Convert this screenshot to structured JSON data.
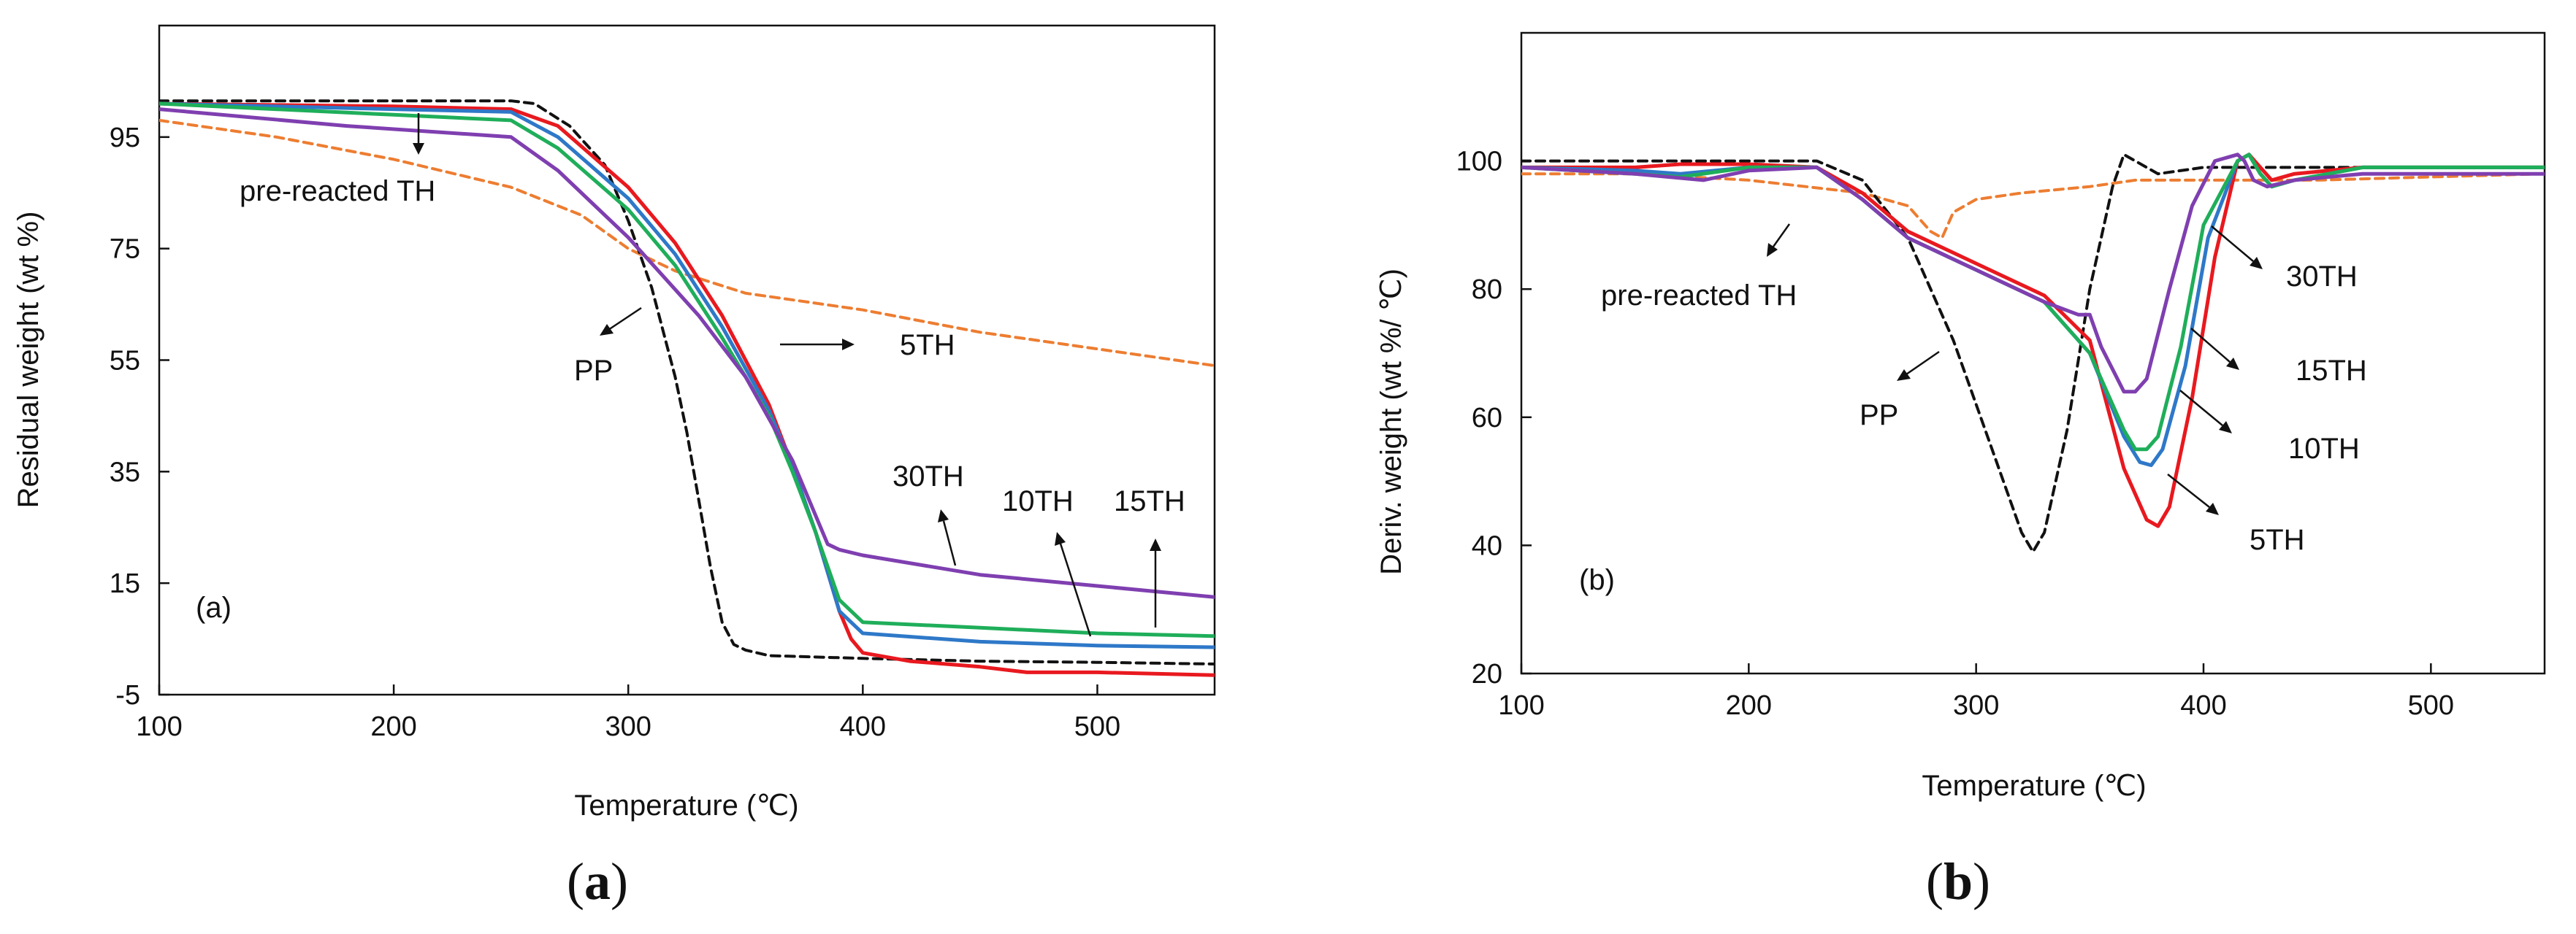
{
  "colors": {
    "pp": "#111111",
    "pre_reacted": "#ed7d31",
    "th5": "#e8191f",
    "th10": "#2e78c8",
    "th15": "#1fae5a",
    "th30": "#7f3fb0"
  },
  "chart_data": [
    {
      "id": "a",
      "type": "line",
      "panel_label": "(a)",
      "caption": {
        "open": "(",
        "letter": "a",
        "close": ")"
      },
      "xlabel": "Temperature (℃)",
      "ylabel": "Residual weight (wt %)",
      "xlim": [
        100,
        550
      ],
      "ylim": [
        -5,
        115
      ],
      "xticks": [
        100,
        200,
        300,
        400,
        500
      ],
      "yticks": [
        -5,
        15,
        35,
        55,
        75,
        95
      ],
      "series": [
        {
          "name": "pre-reacted TH",
          "color_key": "pre_reacted",
          "dash": true,
          "x": [
            100,
            150,
            200,
            250,
            280,
            300,
            320,
            350,
            400,
            450,
            500,
            550
          ],
          "y": [
            98,
            95,
            91,
            86,
            81,
            75,
            71,
            67,
            64,
            60,
            57,
            54
          ]
        },
        {
          "name": "PP",
          "color_key": "pp",
          "dash": true,
          "x": [
            100,
            250,
            260,
            275,
            290,
            300,
            310,
            320,
            325,
            330,
            335,
            340,
            345,
            350,
            360,
            400,
            450,
            500,
            550
          ],
          "y": [
            101.5,
            101.5,
            101,
            97,
            90,
            80,
            68,
            52,
            42,
            30,
            18,
            8,
            4,
            3,
            2,
            1.5,
            1,
            0.8,
            0.5
          ]
        },
        {
          "name": "5TH",
          "color_key": "th5",
          "x": [
            100,
            200,
            250,
            270,
            300,
            320,
            340,
            360,
            370,
            380,
            390,
            395,
            400,
            420,
            450,
            470,
            500,
            550
          ],
          "y": [
            101,
            100.5,
            100,
            97,
            86,
            76,
            63,
            47,
            36,
            24,
            10,
            5,
            2.5,
            1,
            0,
            -1,
            -1,
            -1.5
          ]
        },
        {
          "name": "10TH",
          "color_key": "th10",
          "x": [
            100,
            200,
            250,
            270,
            300,
            320,
            340,
            360,
            370,
            380,
            390,
            400,
            450,
            500,
            550
          ],
          "y": [
            101,
            100,
            99.5,
            95,
            84,
            74,
            61,
            46,
            36,
            24,
            10,
            6,
            4.5,
            3.8,
            3.5
          ]
        },
        {
          "name": "15TH",
          "color_key": "th15",
          "x": [
            100,
            200,
            250,
            270,
            300,
            320,
            340,
            360,
            370,
            380,
            390,
            400,
            450,
            500,
            550
          ],
          "y": [
            101,
            99,
            98,
            93,
            82,
            72,
            59,
            45,
            35,
            24,
            12,
            8,
            7,
            6,
            5.5
          ]
        },
        {
          "name": "30TH",
          "color_key": "th30",
          "x": [
            100,
            180,
            250,
            270,
            300,
            330,
            350,
            370,
            385,
            390,
            400,
            450,
            500,
            550
          ],
          "y": [
            100,
            97,
            95,
            89,
            77,
            63,
            52,
            37,
            22,
            21,
            20,
            16.5,
            14.5,
            12.5
          ]
        }
      ],
      "annotations": [
        {
          "text": "pre-reacted TH"
        },
        {
          "text": "PP"
        },
        {
          "text": "5TH"
        },
        {
          "text": "30TH"
        },
        {
          "text": "10TH"
        },
        {
          "text": "15TH"
        }
      ]
    },
    {
      "id": "b",
      "type": "line",
      "panel_label": "(b)",
      "caption": {
        "open": "(",
        "letter": "b",
        "close": ")"
      },
      "xlabel": "Temperature (℃)",
      "ylabel": "Deriv. weight (wt %/ ℃)",
      "xlim": [
        100,
        550
      ],
      "ylim": [
        20,
        120
      ],
      "xticks": [
        100,
        200,
        300,
        400,
        500
      ],
      "yticks": [
        20,
        40,
        60,
        80,
        100
      ],
      "series": [
        {
          "name": "pre-reacted TH",
          "color_key": "pre_reacted",
          "dash": true,
          "x": [
            100,
            150,
            200,
            250,
            270,
            280,
            285,
            290,
            300,
            320,
            350,
            370,
            400,
            450,
            500,
            550
          ],
          "y": [
            98,
            98,
            97,
            95,
            93,
            89,
            88,
            92,
            94,
            95,
            96,
            97,
            97,
            97,
            97.5,
            98
          ]
        },
        {
          "name": "PP",
          "color_key": "pp",
          "dash": true,
          "x": [
            100,
            200,
            230,
            250,
            270,
            290,
            300,
            310,
            320,
            325,
            330,
            340,
            350,
            360,
            365,
            370,
            380,
            400,
            450,
            500,
            550
          ],
          "y": [
            100,
            100,
            100,
            97,
            88,
            72,
            62,
            52,
            42,
            39,
            42,
            58,
            80,
            96,
            101,
            100,
            98,
            99,
            99,
            99,
            99
          ]
        },
        {
          "name": "5TH",
          "color_key": "th5",
          "x": [
            100,
            150,
            170,
            200,
            230,
            250,
            270,
            300,
            330,
            350,
            365,
            375,
            380,
            385,
            395,
            405,
            415,
            420,
            425,
            430,
            440,
            470,
            500,
            550
          ],
          "y": [
            99,
            99,
            99.5,
            99.5,
            99,
            95,
            89,
            84,
            79,
            72,
            52,
            44,
            43,
            46,
            63,
            85,
            100,
            101,
            99,
            97,
            98,
            99,
            99,
            99
          ]
        },
        {
          "name": "10TH",
          "color_key": "th10",
          "x": [
            100,
            150,
            170,
            200,
            230,
            250,
            270,
            300,
            330,
            350,
            365,
            372,
            377,
            382,
            392,
            402,
            415,
            420,
            425,
            430,
            440,
            470,
            500,
            550
          ],
          "y": [
            99,
            98.5,
            98,
            99,
            99,
            94,
            88,
            83,
            78,
            70,
            57,
            53,
            52.5,
            55,
            68,
            88,
            100,
            101,
            98,
            96,
            97,
            99,
            99,
            99
          ]
        },
        {
          "name": "15TH",
          "color_key": "th15",
          "x": [
            100,
            150,
            170,
            200,
            230,
            250,
            270,
            300,
            330,
            350,
            365,
            370,
            375,
            380,
            390,
            400,
            415,
            420,
            425,
            430,
            440,
            470,
            500,
            550
          ],
          "y": [
            99,
            98,
            97.5,
            99,
            99,
            94,
            88,
            83,
            78,
            70,
            58,
            55,
            55,
            57,
            71,
            90,
            100,
            101,
            98,
            96,
            97,
            99,
            99,
            99
          ]
        },
        {
          "name": "30TH",
          "color_key": "th30",
          "x": [
            100,
            150,
            180,
            200,
            230,
            250,
            270,
            300,
            330,
            345,
            350,
            355,
            365,
            370,
            375,
            385,
            395,
            405,
            415,
            418,
            422,
            428,
            440,
            470,
            500,
            550
          ],
          "y": [
            99,
            98,
            97,
            98.5,
            99,
            94,
            88,
            83,
            78,
            76,
            76,
            71,
            64,
            64,
            66,
            80,
            93,
            100,
            101,
            100,
            97,
            96,
            97,
            98,
            98,
            98
          ]
        }
      ],
      "annotations": [
        {
          "text": "pre-reacted TH"
        },
        {
          "text": "PP"
        },
        {
          "text": "30TH"
        },
        {
          "text": "15TH"
        },
        {
          "text": "10TH"
        },
        {
          "text": "5TH"
        }
      ]
    }
  ]
}
